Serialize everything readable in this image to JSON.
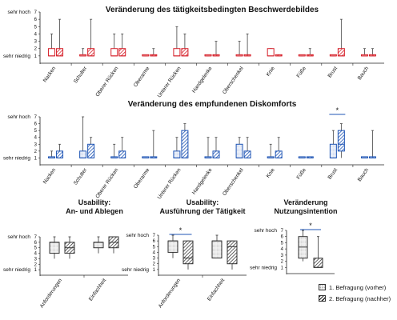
{
  "chart_data": [
    {
      "type": "boxplot",
      "title": "Veränderung des tätigkeitsbedingten Beschwerdebildes",
      "ylim": [
        0,
        7
      ],
      "yticks": [
        1,
        2,
        3,
        4,
        5,
        6,
        7
      ],
      "ytick_labels_top": "sehr hoch",
      "ytick_labels_bottom": "sehr niedrig",
      "style": "red",
      "categories": [
        "Nacken",
        "Schulter",
        "Oberer Rücken",
        "Oberarme",
        "Unterer Rücken",
        "Handgelenke",
        "Oberschenkel",
        "Knie",
        "Füße",
        "Brust",
        "Bauch"
      ],
      "series": [
        {
          "name": "1. Befragung (vorher)",
          "boxes": [
            [
              1,
              1,
              1,
              2,
              4
            ],
            [
              1,
              1,
              1,
              1,
              2
            ],
            [
              1,
              1,
              1,
              2,
              4
            ],
            [
              1,
              1,
              1,
              1,
              1
            ],
            [
              1,
              1,
              1,
              2,
              5
            ],
            [
              1,
              1,
              1,
              1,
              1
            ],
            [
              1,
              1,
              1,
              1,
              3
            ],
            [
              1,
              1,
              1,
              2,
              2
            ],
            [
              1,
              1,
              1,
              1,
              1
            ],
            [
              1,
              1,
              1,
              1,
              1
            ],
            [
              1,
              1,
              1,
              1,
              2
            ]
          ]
        },
        {
          "name": "2. Befragung (nachher)",
          "boxes": [
            [
              1,
              1,
              1,
              2,
              6
            ],
            [
              1,
              1,
              1,
              2,
              6
            ],
            [
              1,
              1,
              1,
              2,
              4
            ],
            [
              1,
              1,
              1,
              1,
              2
            ],
            [
              1,
              1,
              1,
              2,
              4
            ],
            [
              1,
              1,
              1,
              1,
              3
            ],
            [
              1,
              1,
              1,
              1,
              4
            ],
            [
              1,
              1,
              1,
              1,
              1
            ],
            [
              1,
              1,
              1,
              1,
              2
            ],
            [
              1,
              1,
              1,
              2,
              6
            ],
            [
              1,
              1,
              1,
              1,
              2
            ]
          ]
        }
      ]
    },
    {
      "type": "boxplot",
      "title": "Veränderung des empfundenen Diskomforts",
      "ylim": [
        0,
        7
      ],
      "yticks": [
        1,
        2,
        3,
        4,
        5,
        6,
        7
      ],
      "ytick_labels_top": "sehr hoch",
      "ytick_labels_bottom": "sehr niedrig",
      "style": "blue",
      "significance": [
        {
          "category": "Brust",
          "label": "*"
        }
      ],
      "categories": [
        "Nacken",
        "Schulter",
        "Oberer Rücken",
        "Oberarme",
        "Unterer Rücken",
        "Handgelenke",
        "Oberschenkel",
        "Knie",
        "Füße",
        "Brust",
        "Bauch"
      ],
      "series": [
        {
          "name": "1. Befragung (vorher)",
          "boxes": [
            [
              1,
              1,
              1,
              1,
              2
            ],
            [
              1,
              1,
              1,
              2,
              7
            ],
            [
              1,
              1,
              1,
              1,
              3
            ],
            [
              1,
              1,
              1,
              1,
              1
            ],
            [
              1,
              1,
              1,
              2,
              4
            ],
            [
              1,
              1,
              1,
              1,
              4
            ],
            [
              1,
              1,
              1,
              3,
              4
            ],
            [
              1,
              1,
              1,
              1,
              3
            ],
            [
              1,
              1,
              1,
              1,
              1
            ],
            [
              1,
              1,
              1,
              3,
              5
            ],
            [
              1,
              1,
              1,
              1,
              1
            ]
          ]
        },
        {
          "name": "2. Befragung (nachher)",
          "boxes": [
            [
              1,
              1,
              1,
              2,
              3
            ],
            [
              1,
              1,
              1,
              3,
              4
            ],
            [
              1,
              1,
              1,
              2,
              4
            ],
            [
              1,
              1,
              1,
              1,
              5
            ],
            [
              1,
              1,
              1,
              5,
              6
            ],
            [
              1,
              1,
              1,
              2,
              4
            ],
            [
              1,
              1,
              1,
              2,
              4
            ],
            [
              1,
              1,
              1,
              2,
              4
            ],
            [
              1,
              1,
              1,
              1,
              1
            ],
            [
              1,
              2,
              3,
              5,
              6
            ],
            [
              1,
              1,
              1,
              1,
              5
            ]
          ]
        }
      ]
    },
    {
      "type": "boxplot",
      "title": "Usability:\nAn- und Ablegen",
      "ylim": [
        0,
        7
      ],
      "yticks": [
        1,
        2,
        3,
        4,
        5,
        6,
        7
      ],
      "ytick_labels_top": "sehr hoch",
      "ytick_labels_bottom": "sehr niedrig",
      "style": "bw",
      "categories": [
        "Anforderungen",
        "Einfachheit"
      ],
      "series": [
        {
          "name": "1. Befragung (vorher)",
          "boxes": [
            [
              3,
              4,
              6,
              6,
              7
            ],
            [
              4,
              5,
              6,
              6,
              7
            ]
          ]
        },
        {
          "name": "2. Befragung (nachher)",
          "boxes": [
            [
              3,
              4,
              5,
              6,
              7
            ],
            [
              4,
              5,
              6,
              7,
              7
            ]
          ]
        }
      ]
    },
    {
      "type": "boxplot",
      "title": "Usability:\nAusführung der Tätigkeit",
      "ylim": [
        0,
        7
      ],
      "yticks": [
        1,
        2,
        3,
        4,
        5,
        6,
        7
      ],
      "ytick_labels_top": "sehr hoch",
      "ytick_labels_bottom": "sehr niedrig",
      "style": "bw",
      "significance": [
        {
          "category": "Anforderungen",
          "label": "*"
        }
      ],
      "categories": [
        "Anforderungen",
        "Einfachheit"
      ],
      "series": [
        {
          "name": "1. Befragung (vorher)",
          "boxes": [
            [
              3,
              4,
              6,
              6,
              7
            ],
            [
              3,
              3,
              6,
              6,
              7
            ]
          ]
        },
        {
          "name": "2. Befragung (nachher)",
          "boxes": [
            [
              1,
              2,
              3,
              6,
              6
            ],
            [
              1,
              2,
              5,
              6,
              6
            ]
          ]
        }
      ]
    },
    {
      "type": "boxplot",
      "title": "Veränderung\nNutzungsintention",
      "ylim": [
        0,
        7
      ],
      "yticks": [
        1,
        2,
        3,
        4,
        5,
        6,
        7
      ],
      "ytick_labels_top": "sehr hoch",
      "ytick_labels_bottom": "sehr niedrig",
      "style": "bw",
      "significance": [
        {
          "category": "",
          "label": "*"
        }
      ],
      "categories": [
        ""
      ],
      "series": [
        {
          "name": "1. Befragung (vorher)",
          "boxes": [
            [
              2,
              2.5,
              4.3,
              6,
              7
            ]
          ]
        },
        {
          "name": "2. Befragung (nachher)",
          "boxes": [
            [
              1,
              1,
              1,
              2.5,
              6
            ]
          ]
        }
      ]
    }
  ],
  "legend": [
    {
      "label": "1. Befragung (vorher)"
    },
    {
      "label": "2. Befragung (nachher)"
    }
  ],
  "colors": {
    "red": "#d6202a",
    "blue": "#1f55b5",
    "dark": "#222222"
  }
}
